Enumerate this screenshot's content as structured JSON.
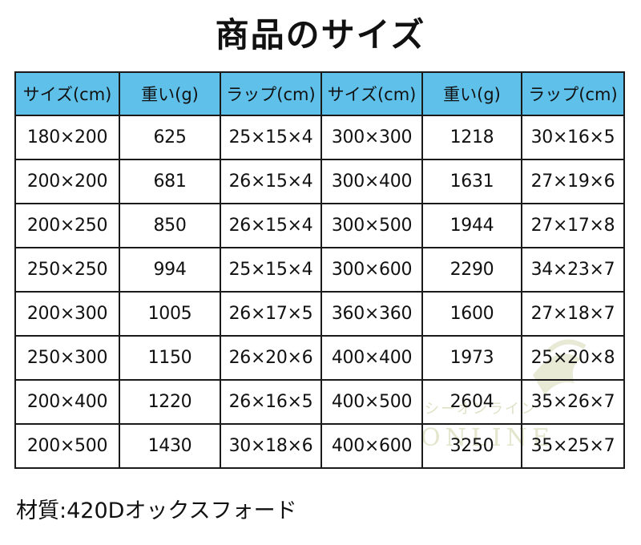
{
  "title": "商品のサイズ",
  "table": {
    "headers": [
      "サイズ(cm)",
      "重い(g)",
      "ラップ(cm)",
      "サイズ(cm)",
      "重い(g)",
      "ラップ(cm)"
    ],
    "rows": [
      [
        "180×200",
        "625",
        "25×15×4",
        "300×300",
        "1218",
        "30×16×5"
      ],
      [
        "200×200",
        "681",
        "26×15×4",
        "300×400",
        "1631",
        "27×19×6"
      ],
      [
        "200×250",
        "850",
        "26×15×4",
        "300×500",
        "1944",
        "27×17×8"
      ],
      [
        "250×250",
        "994",
        "25×15×4",
        "300×600",
        "2290",
        "34×23×7"
      ],
      [
        "200×300",
        "1005",
        "26×17×5",
        "360×360",
        "1600",
        "27×18×7"
      ],
      [
        "250×300",
        "1150",
        "26×20×6",
        "400×400",
        "1973",
        "25×20×8"
      ],
      [
        "200×400",
        "1220",
        "26×16×5",
        "400×500",
        "2604",
        "35×26×7"
      ],
      [
        "200×500",
        "1430",
        "30×18×6",
        "400×600",
        "3250",
        "35×25×7"
      ]
    ]
  },
  "material": "材質:420Dオックスフォード",
  "watermark": {
    "text_jp": "シーオンライン",
    "text_en": "ONLINE",
    "color": "#e8ead0"
  },
  "colors": {
    "header_bg": "#5fc0ea",
    "border": "#1a1a1a"
  }
}
